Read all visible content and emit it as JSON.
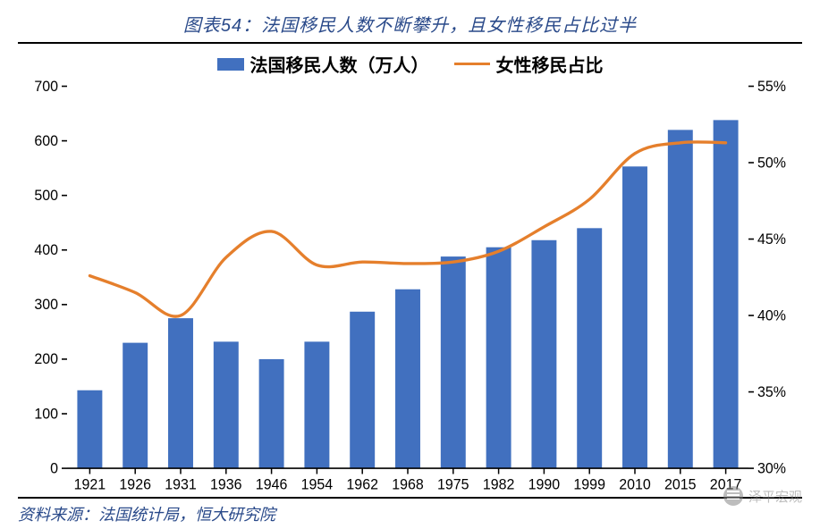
{
  "title": "图表54：法国移民人数不断攀升，且女性移民占比过半",
  "legend": {
    "bars": "法国移民人数（万人）",
    "line": "女性移民占比"
  },
  "source": "资料来源：法国统计局，恒大研究院",
  "watermark": "泽平宏观",
  "chart": {
    "type": "bar+line-dual-axis",
    "categories": [
      "1921",
      "1926",
      "1931",
      "1936",
      "1946",
      "1954",
      "1962",
      "1968",
      "1975",
      "1982",
      "1990",
      "1999",
      "2010",
      "2015",
      "2017"
    ],
    "bars": {
      "values": [
        143,
        230,
        275,
        232,
        200,
        232,
        287,
        328,
        388,
        405,
        418,
        440,
        553,
        620,
        638
      ],
      "color": "#4170bf",
      "width": 0.55
    },
    "line": {
      "values": [
        42.6,
        41.5,
        40.0,
        43.8,
        45.5,
        43.3,
        43.5,
        43.4,
        43.5,
        44.2,
        45.8,
        47.6,
        50.6,
        51.3,
        51.3
      ],
      "color": "#e57f2c",
      "width": 3.2
    },
    "y_left": {
      "min": 0,
      "max": 700,
      "step": 100,
      "label_suffix": ""
    },
    "y_right": {
      "min": 30,
      "max": 55,
      "step": 5,
      "label_suffix": "%"
    },
    "background_color": "#ffffff",
    "tick_color": "#000000",
    "font_size_axis": 16,
    "font_size_title": 20,
    "font_size_legend": 20
  }
}
